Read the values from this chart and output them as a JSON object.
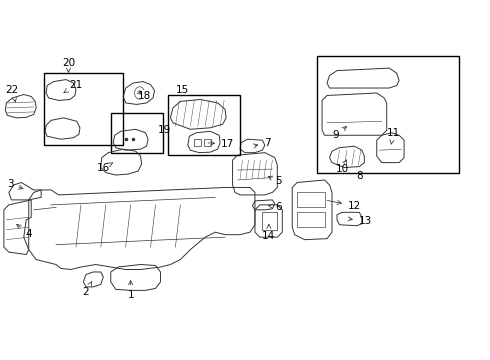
{
  "bg_color": "#ffffff",
  "line_color": "#333333",
  "box_color": "#000000",
  "label_color": "#000000",
  "font_size": 7.5
}
